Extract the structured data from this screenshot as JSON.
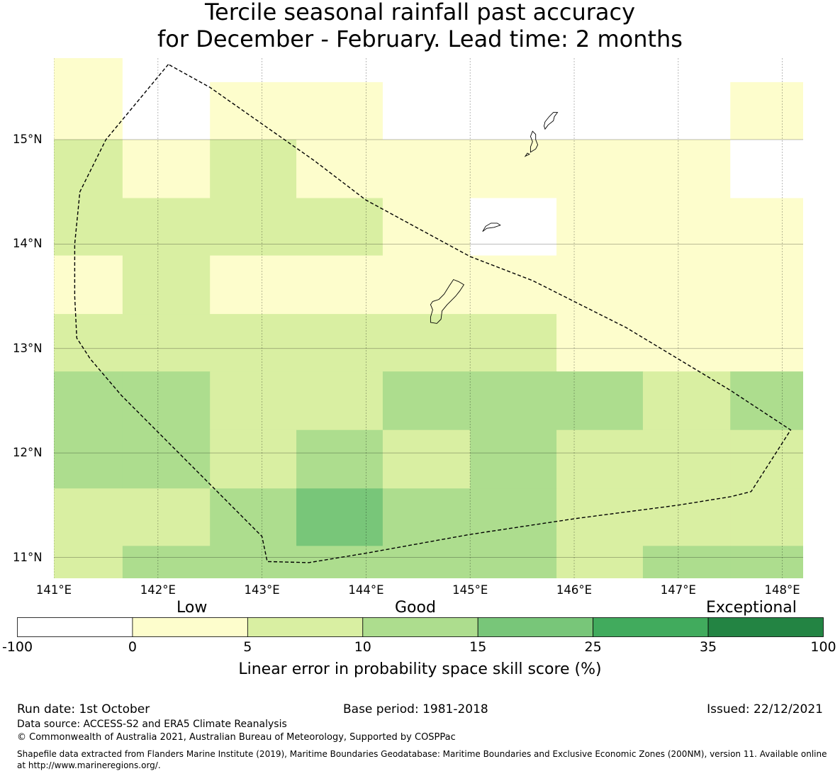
{
  "title": {
    "line1": "Tercile seasonal rainfall past accuracy",
    "line2": "for December - February. Lead time: 2 months"
  },
  "map": {
    "lon_range": [
      141.0,
      148.2
    ],
    "lat_range": [
      10.8,
      15.78
    ],
    "x_ticks": [
      "141°E",
      "142°E",
      "143°E",
      "144°E",
      "145°E",
      "146°E",
      "147°E",
      "148°E"
    ],
    "x_tick_values": [
      141,
      142,
      143,
      144,
      145,
      146,
      147,
      148
    ],
    "y_ticks": [
      "15°N",
      "14°N",
      "13°N",
      "12°N",
      "11°N"
    ],
    "y_tick_values": [
      15,
      14,
      13,
      12,
      11
    ],
    "col_edges": [
      141.0,
      141.66,
      142.5,
      143.33,
      144.16,
      145.0,
      145.83,
      146.66,
      147.5,
      148.2
    ],
    "row_edges": [
      15.78,
      15.55,
      15.0,
      14.44,
      13.89,
      13.33,
      12.78,
      12.22,
      11.66,
      11.11,
      10.8
    ],
    "cell_classes": [
      [
        1,
        0,
        0,
        0,
        0,
        0,
        0,
        0,
        0
      ],
      [
        1,
        0,
        1,
        1,
        0,
        0,
        0,
        0,
        1
      ],
      [
        2,
        1,
        2,
        1,
        1,
        1,
        1,
        1,
        0
      ],
      [
        2,
        2,
        2,
        2,
        1,
        0,
        1,
        1,
        1
      ],
      [
        1,
        2,
        1,
        1,
        1,
        1,
        1,
        1,
        1
      ],
      [
        2,
        2,
        2,
        2,
        2,
        2,
        1,
        1,
        1
      ],
      [
        3,
        3,
        2,
        2,
        3,
        3,
        3,
        2,
        3
      ],
      [
        3,
        3,
        2,
        3,
        2,
        3,
        2,
        2,
        2
      ],
      [
        2,
        2,
        3,
        4,
        3,
        3,
        2,
        2,
        2
      ],
      [
        2,
        3,
        3,
        3,
        3,
        3,
        2,
        3,
        3
      ]
    ],
    "eez_boundary": [
      [
        142.1,
        15.72
      ],
      [
        141.5,
        15.0
      ],
      [
        141.25,
        14.5
      ],
      [
        141.2,
        14.0
      ],
      [
        141.2,
        13.5
      ],
      [
        141.22,
        13.1
      ],
      [
        141.35,
        12.9
      ],
      [
        141.65,
        12.55
      ],
      [
        142.0,
        12.2
      ],
      [
        142.5,
        11.7
      ],
      [
        143.0,
        11.2
      ],
      [
        143.05,
        10.96
      ],
      [
        143.45,
        10.95
      ],
      [
        144.0,
        11.04
      ],
      [
        145.0,
        11.22
      ],
      [
        146.0,
        11.37
      ],
      [
        147.0,
        11.5
      ],
      [
        147.5,
        11.58
      ],
      [
        147.7,
        11.63
      ],
      [
        148.08,
        12.22
      ],
      [
        147.5,
        12.6
      ],
      [
        147.0,
        12.9
      ],
      [
        146.5,
        13.2
      ],
      [
        145.6,
        13.65
      ],
      [
        145.0,
        13.88
      ],
      [
        144.5,
        14.15
      ],
      [
        144.0,
        14.42
      ],
      [
        143.5,
        14.8
      ],
      [
        142.5,
        15.5
      ],
      [
        142.1,
        15.72
      ]
    ],
    "islands": [
      [
        [
          144.62,
          13.25
        ],
        [
          144.68,
          13.24
        ],
        [
          144.72,
          13.28
        ],
        [
          144.73,
          13.36
        ],
        [
          144.78,
          13.42
        ],
        [
          144.86,
          13.5
        ],
        [
          144.9,
          13.55
        ],
        [
          144.94,
          13.61
        ],
        [
          144.89,
          13.64
        ],
        [
          144.84,
          13.66
        ],
        [
          144.8,
          13.6
        ],
        [
          144.75,
          13.52
        ],
        [
          144.7,
          13.47
        ],
        [
          144.64,
          13.45
        ],
        [
          144.62,
          13.42
        ],
        [
          144.64,
          13.37
        ],
        [
          144.62,
          13.3
        ],
        [
          144.62,
          13.25
        ]
      ],
      [
        [
          145.12,
          14.12
        ],
        [
          145.16,
          14.15
        ],
        [
          145.23,
          14.16
        ],
        [
          145.29,
          14.18
        ],
        [
          145.26,
          14.2
        ],
        [
          145.2,
          14.2
        ],
        [
          145.15,
          14.17
        ],
        [
          145.12,
          14.12
        ]
      ],
      [
        [
          145.58,
          14.88
        ],
        [
          145.63,
          14.91
        ],
        [
          145.65,
          14.95
        ],
        [
          145.63,
          15.0
        ],
        [
          145.63,
          15.05
        ],
        [
          145.6,
          15.08
        ],
        [
          145.58,
          15.03
        ],
        [
          145.6,
          14.98
        ],
        [
          145.58,
          14.93
        ],
        [
          145.58,
          14.88
        ]
      ],
      [
        [
          145.72,
          15.1
        ],
        [
          145.75,
          15.14
        ],
        [
          145.8,
          15.18
        ],
        [
          145.81,
          15.22
        ],
        [
          145.84,
          15.26
        ],
        [
          145.8,
          15.26
        ],
        [
          145.76,
          15.22
        ],
        [
          145.72,
          15.17
        ],
        [
          145.71,
          15.13
        ],
        [
          145.72,
          15.1
        ]
      ],
      [
        [
          145.53,
          14.84
        ],
        [
          145.57,
          14.86
        ],
        [
          145.55,
          14.87
        ],
        [
          145.53,
          14.84
        ]
      ]
    ]
  },
  "colorbar": {
    "categories": [
      "Low",
      "Good",
      "Exceptional"
    ],
    "ticks": [
      "-100",
      "0",
      "5",
      "10",
      "15",
      "25",
      "35",
      "100"
    ],
    "colors": [
      "#ffffff",
      "#fdfdcc",
      "#d9efa2",
      "#addd8e",
      "#78c679",
      "#41ab5d",
      "#238443"
    ],
    "label": "Linear error in probability space skill score (%)"
  },
  "footer": {
    "run_date": "Run date: 1st October",
    "base_period": "Base period: 1981-2018",
    "issued": "Issued: 22/12/2021",
    "data_source": "Data source: ACCESS-S2 and ERA5 Climate Reanalysis",
    "copyright": "© Commonwealth of Australia 2021, Australian Bureau of Meteorology, Supported by COSPPac",
    "shapefile_line1": "Shapefile data extracted from Flanders Marine Institute (2019), Maritime Boundaries Geodatabase: Maritime Boundaries and Exclusive Economic Zones (200NM), version 11. Available online",
    "shapefile_line2": "at http://www.marineregions.org/."
  }
}
